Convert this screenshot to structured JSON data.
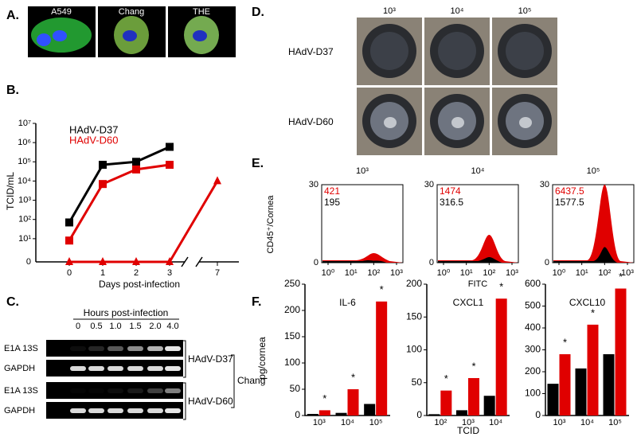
{
  "panel_labels": [
    "A.",
    "B.",
    "C.",
    "D.",
    "E.",
    "F."
  ],
  "panel_a": {
    "images": [
      "A549",
      "Chang",
      "THE"
    ]
  },
  "chart_data": [
    {
      "type": "line",
      "y_label": "TCID/mL",
      "x_label": "Days post-infection",
      "log_y": true,
      "x": [
        0,
        1,
        2,
        3,
        7
      ],
      "xticks": [
        0,
        1,
        2,
        3,
        7
      ],
      "ylim": [
        1,
        10000000
      ],
      "yticks": [
        {
          "value": 10,
          "label": "10¹"
        },
        {
          "value": 100,
          "label": "10²"
        },
        {
          "value": 1000,
          "label": "10³"
        },
        {
          "value": 10000,
          "label": "10⁴"
        },
        {
          "value": 100000,
          "label": "10⁵"
        },
        {
          "value": 1000000,
          "label": "10⁶"
        },
        {
          "value": 10000000,
          "label": "10⁷"
        }
      ],
      "zero_tick": 0,
      "series": [
        {
          "name": "HAdV-D37",
          "color": "#000000",
          "values": [
            70,
            70000,
            100000,
            600000,
            null
          ]
        },
        {
          "name": "HAdV-D60",
          "color": "#e00000",
          "values": [
            8,
            7000,
            40000,
            70000,
            null
          ]
        },
        {
          "color": "#e00000",
          "values": [
            0,
            0,
            0,
            0,
            10000
          ]
        }
      ]
    },
    {
      "type": "bar",
      "title": "IL-6",
      "y_label": "pg/cornea",
      "categories": [
        "10³",
        "10⁴",
        "10⁵"
      ],
      "ylim": [
        0,
        250
      ],
      "yticks": [
        0,
        50,
        100,
        150,
        200,
        250
      ],
      "series": [
        {
          "color": "#000000",
          "values": [
            3,
            5,
            22
          ]
        },
        {
          "color": "#e00000",
          "values": [
            10,
            50,
            217
          ]
        }
      ],
      "annotations": [
        "*",
        "*",
        "*"
      ]
    },
    {
      "type": "bar",
      "title": "CXCL1",
      "x_label": "TCID",
      "categories": [
        "10²",
        "10³",
        "10⁴"
      ],
      "ylim": [
        0,
        200
      ],
      "yticks": [
        0,
        50,
        100,
        150,
        200
      ],
      "series": [
        {
          "color": "#000000",
          "values": [
            2,
            8,
            30
          ]
        },
        {
          "color": "#e00000",
          "values": [
            38,
            57,
            178
          ]
        }
      ],
      "annotations": [
        "*",
        "*",
        "*"
      ]
    },
    {
      "type": "bar",
      "title": "CXCL10",
      "categories": [
        "10³",
        "10⁴",
        "10⁵"
      ],
      "ylim": [
        0,
        600
      ],
      "yticks": [
        0,
        100,
        200,
        300,
        400,
        500,
        600
      ],
      "series": [
        {
          "color": "#000000",
          "values": [
            145,
            215,
            280
          ]
        },
        {
          "color": "#e00000",
          "values": [
            280,
            415,
            580
          ]
        }
      ],
      "annotations": [
        "*",
        "*",
        "*"
      ]
    }
  ],
  "panel_c": {
    "title": "Hours post-infection",
    "times": [
      "0",
      "0.5",
      "1.0",
      "1.5",
      "2.0",
      "4.0"
    ],
    "rows": [
      "E1A 13S",
      "GAPDH",
      "E1A 13S",
      "GAPDH"
    ],
    "groups": [
      "HAdV-D37",
      "HAdV-D60"
    ],
    "cell_line": "Chang"
  },
  "panel_d": {
    "columns": [
      "10³",
      "10⁴",
      "10⁵"
    ],
    "rows": [
      "HAdV-D37",
      "HAdV-D60"
    ]
  },
  "panel_e": {
    "columns": [
      "10³",
      "10⁴",
      "10⁵"
    ],
    "y_label": "CD45⁺/Cornea",
    "x_label": "FITC",
    "y_top": 30,
    "y_bottom": 0,
    "xticks": [
      {
        "value": 1,
        "label": "10⁰"
      },
      {
        "value": 10,
        "label": "10¹"
      },
      {
        "value": 100,
        "label": "10²"
      },
      {
        "value": 1000,
        "label": "10³"
      }
    ],
    "red_counts": [
      421,
      1474,
      6437.5
    ],
    "black_counts": [
      195,
      316.5,
      1577.5
    ]
  }
}
